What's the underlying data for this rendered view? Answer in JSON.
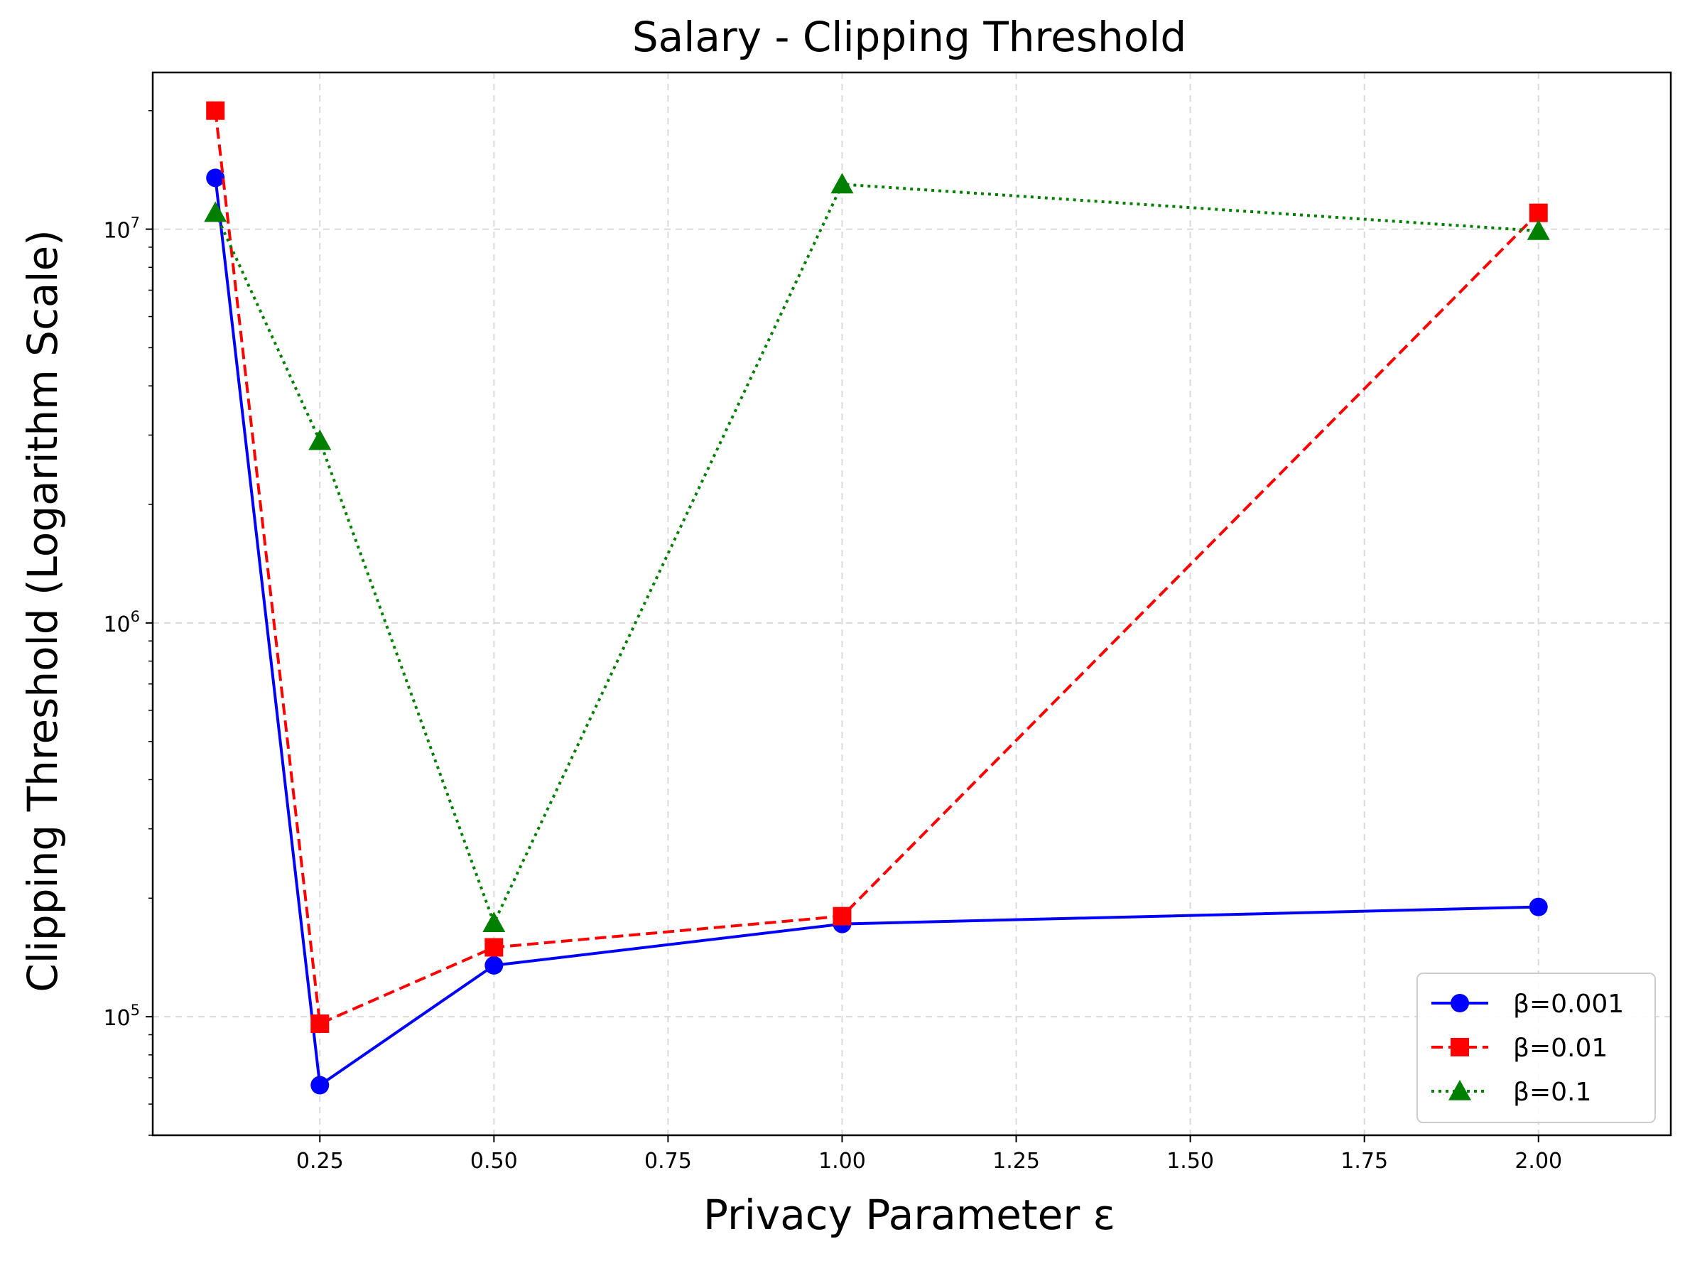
{
  "chart_data": {
    "type": "line",
    "title": "Salary - Clipping Threshold",
    "xlabel": "Privacy Parameter ε",
    "ylabel": "Clipping Threshold (Logarithm Scale)",
    "yscale": "log",
    "xlim": [
      0.01,
      2.19
    ],
    "ylim": [
      50000,
      25000000
    ],
    "grid": true,
    "legend_position": "lower-right",
    "x_ticks": [
      {
        "value": 0.25,
        "label": "0.25"
      },
      {
        "value": 0.5,
        "label": "0.50"
      },
      {
        "value": 0.75,
        "label": "0.75"
      },
      {
        "value": 1.0,
        "label": "1.00"
      },
      {
        "value": 1.25,
        "label": "1.25"
      },
      {
        "value": 1.5,
        "label": "1.50"
      },
      {
        "value": 1.75,
        "label": "1.75"
      },
      {
        "value": 2.0,
        "label": "2.00"
      }
    ],
    "y_ticks": [
      {
        "value": 100000,
        "base": "10",
        "exp": "5"
      },
      {
        "value": 1000000,
        "base": "10",
        "exp": "6"
      },
      {
        "value": 10000000,
        "base": "10",
        "exp": "7"
      }
    ],
    "x": [
      0.1,
      0.25,
      0.5,
      1.0,
      2.0
    ],
    "series": [
      {
        "name": "β=0.001",
        "color": "#0000ff",
        "dash": "solid",
        "marker": "circle",
        "values": [
          13500000,
          67000,
          135000,
          172000,
          190000
        ]
      },
      {
        "name": "β=0.01",
        "color": "#ff0000",
        "dash": "dashed",
        "marker": "square",
        "values": [
          20000000,
          96000,
          150000,
          180000,
          11000000
        ]
      },
      {
        "name": "β=0.1",
        "color": "#007f00",
        "dash": "dotted",
        "marker": "triangle",
        "values": [
          11000000,
          2900000,
          173000,
          13000000,
          9900000
        ]
      }
    ]
  }
}
